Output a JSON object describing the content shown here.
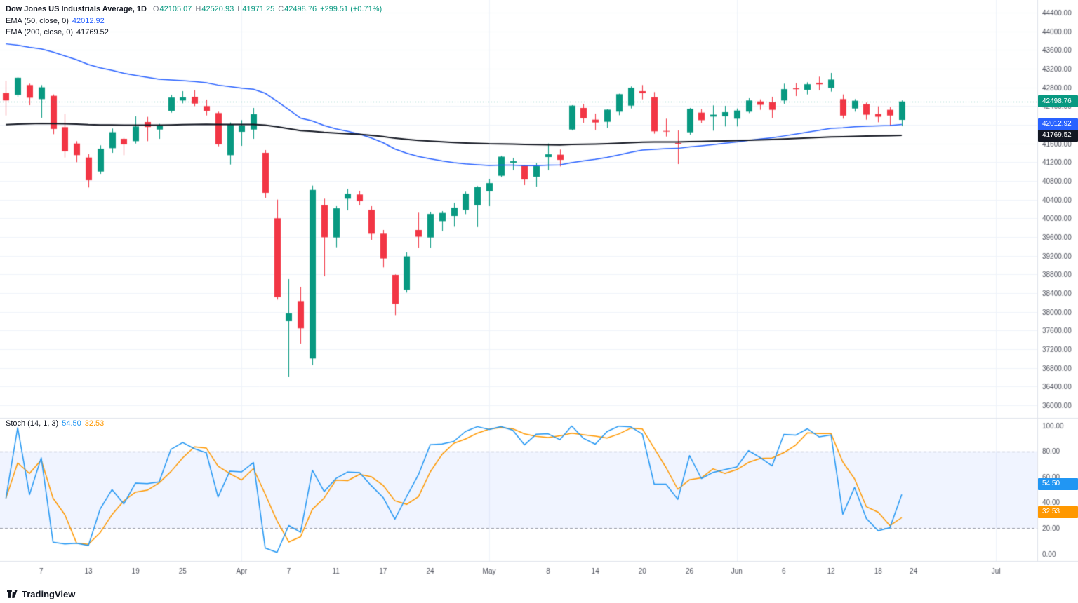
{
  "legend": {
    "symbol": "Dow Jones US Industrials Average, 1D",
    "open_label": "O",
    "open_value": "42105.07",
    "high_label": "H",
    "high_value": "42520.93",
    "low_label": "L",
    "low_value": "41971.25",
    "close_label": "C",
    "close_value": "42498.76",
    "change": "+299.51 (+0.71%)",
    "ema50_label": "EMA (50, close, 0)",
    "ema50_value": "42012.92",
    "ema200_label": "EMA (200, close, 0)",
    "ema200_value": "41769.52",
    "stoch_label": "Stoch (14, 1, 3)",
    "stoch_k_value": "54.50",
    "stoch_d_value": "32.53"
  },
  "badges": {
    "last": "42498.76",
    "ema50": "42012.92",
    "ema200": "41769.52",
    "stoch_k": "54.50",
    "stoch_d": "32.53"
  },
  "attribution": {
    "brand": "TradingView"
  },
  "colors": {
    "up": "#089981",
    "down": "#f23645",
    "ema50": "#2962ff",
    "ema200": "#131722",
    "stoch_k": "#2196f3",
    "stoch_d": "#ff9800",
    "grid": "#f0f3fa",
    "axis_text": "#50535e",
    "separator": "#e0e3eb",
    "band_fill": "rgba(41,98,255,0.07)",
    "band_edge": "rgba(110,114,128,0.7)",
    "last_price_line": "#089981"
  },
  "chart_data": {
    "type": "candlestick",
    "title": "Dow Jones US Industrials Average",
    "interval": "1D",
    "last_price": 42498.76,
    "total_slots": 88,
    "price_axis": {
      "min": 36000,
      "max": 44400,
      "step": 400,
      "ticks": [
        44400,
        44000,
        43600,
        43200,
        42800,
        42400,
        42000,
        41600,
        41200,
        40800,
        40400,
        40000,
        39600,
        39200,
        38800,
        38400,
        38000,
        37600,
        37200,
        36800,
        36400,
        36000
      ]
    },
    "time_ticks": [
      {
        "i": 3,
        "label": "7"
      },
      {
        "i": 7,
        "label": "13"
      },
      {
        "i": 11,
        "label": "19"
      },
      {
        "i": 15,
        "label": "25"
      },
      {
        "i": 20,
        "label": "Apr"
      },
      {
        "i": 24,
        "label": "7"
      },
      {
        "i": 28,
        "label": "11"
      },
      {
        "i": 32,
        "label": "17"
      },
      {
        "i": 36,
        "label": "24"
      },
      {
        "i": 41,
        "label": "May"
      },
      {
        "i": 46,
        "label": "8"
      },
      {
        "i": 50,
        "label": "14"
      },
      {
        "i": 54,
        "label": "20"
      },
      {
        "i": 58,
        "label": "26"
      },
      {
        "i": 62,
        "label": "Jun"
      },
      {
        "i": 66,
        "label": "6"
      },
      {
        "i": 70,
        "label": "12"
      },
      {
        "i": 74,
        "label": "18"
      },
      {
        "i": 77,
        "label": "24"
      },
      {
        "i": 84,
        "label": "Jul"
      }
    ],
    "month_grid": [
      20,
      41,
      62,
      84
    ],
    "candles": [
      [
        42680,
        42940,
        42200,
        42521
      ],
      [
        42640,
        43020,
        42600,
        43007
      ],
      [
        42850,
        42880,
        42420,
        42579
      ],
      [
        42550,
        42850,
        42150,
        42802
      ],
      [
        42620,
        42650,
        41800,
        41912
      ],
      [
        41950,
        42230,
        41300,
        41433
      ],
      [
        41600,
        41650,
        41200,
        41351
      ],
      [
        41300,
        41370,
        40660,
        40814
      ],
      [
        41000,
        41560,
        40950,
        41488
      ],
      [
        41500,
        41920,
        41400,
        41842
      ],
      [
        41700,
        41720,
        41350,
        41581
      ],
      [
        41650,
        42180,
        41600,
        41964
      ],
      [
        42060,
        42170,
        41650,
        41953
      ],
      [
        41900,
        42020,
        41700,
        41985
      ],
      [
        42300,
        42640,
        42260,
        42583
      ],
      [
        42520,
        42720,
        42460,
        42588
      ],
      [
        42600,
        42740,
        42400,
        42455
      ],
      [
        42400,
        42540,
        42200,
        42299
      ],
      [
        42250,
        42280,
        41540,
        41584
      ],
      [
        41350,
        42050,
        41150,
        42002
      ],
      [
        41850,
        42100,
        41550,
        41990
      ],
      [
        41900,
        42360,
        41700,
        42225
      ],
      [
        41400,
        41460,
        40440,
        40546
      ],
      [
        40000,
        40400,
        38260,
        38315
      ],
      [
        37800,
        38700,
        36610,
        37966
      ],
      [
        38230,
        38530,
        37320,
        37646
      ],
      [
        37000,
        40700,
        36860,
        40608
      ],
      [
        40280,
        40420,
        38760,
        39594
      ],
      [
        39590,
        40260,
        39380,
        40213
      ],
      [
        40420,
        40630,
        40170,
        40525
      ],
      [
        40510,
        40590,
        40280,
        40369
      ],
      [
        40180,
        40260,
        39540,
        39669
      ],
      [
        39670,
        39750,
        38950,
        39142
      ],
      [
        38790,
        38800,
        37930,
        38170
      ],
      [
        38470,
        39271,
        38410,
        39187
      ],
      [
        39750,
        40120,
        39370,
        39607
      ],
      [
        39590,
        40138,
        39370,
        40093
      ],
      [
        39940,
        40155,
        39727,
        40114
      ],
      [
        40050,
        40330,
        39818,
        40228
      ],
      [
        40180,
        40570,
        40090,
        40528
      ],
      [
        40280,
        40690,
        39812,
        40669
      ],
      [
        40580,
        40840,
        40260,
        40753
      ],
      [
        40910,
        41340,
        40880,
        41317
      ],
      [
        41190,
        41290,
        41030,
        41219
      ],
      [
        41130,
        41140,
        40710,
        40829
      ],
      [
        40890,
        41180,
        40680,
        41114
      ],
      [
        41310,
        41600,
        41030,
        41368
      ],
      [
        41360,
        41470,
        41110,
        41249
      ],
      [
        41900,
        42420,
        41880,
        42410
      ],
      [
        42360,
        42445,
        42045,
        42140
      ],
      [
        42110,
        42240,
        41890,
        42051
      ],
      [
        42065,
        42330,
        41935,
        42323
      ],
      [
        42280,
        42665,
        42205,
        42655
      ],
      [
        42410,
        42820,
        42350,
        42792
      ],
      [
        42720,
        42850,
        42545,
        42677
      ],
      [
        42590,
        42700,
        41810,
        41860
      ],
      [
        41870,
        42130,
        41750,
        41859
      ],
      [
        41610,
        41880,
        41160,
        41603
      ],
      [
        41840,
        42360,
        41790,
        42343
      ],
      [
        42260,
        42335,
        42042,
        42099
      ],
      [
        42175,
        42415,
        41875,
        42216
      ],
      [
        42180,
        42405,
        41965,
        42270
      ],
      [
        42130,
        42350,
        41965,
        42305
      ],
      [
        42280,
        42570,
        42250,
        42520
      ],
      [
        42500,
        42545,
        42320,
        42428
      ],
      [
        42480,
        42600,
        42145,
        42320
      ],
      [
        42520,
        42880,
        42450,
        42763
      ],
      [
        42780,
        42890,
        42615,
        42762
      ],
      [
        42750,
        42910,
        42650,
        42867
      ],
      [
        42900,
        43030,
        42740,
        42866
      ],
      [
        42790,
        43110,
        42710,
        42968
      ],
      [
        42550,
        42650,
        42130,
        42198
      ],
      [
        42350,
        42550,
        42280,
        42515
      ],
      [
        42440,
        42475,
        42110,
        42216
      ],
      [
        42230,
        42395,
        42055,
        42172
      ],
      [
        42320,
        42380,
        41980,
        42199
      ],
      [
        42105.07,
        42520.93,
        41971.25,
        42498.76
      ]
    ],
    "overlays": [
      {
        "label": "EMA (50, close, 0)",
        "period": 50,
        "seed": 43780,
        "value": 42012.92,
        "color": "#2962ff",
        "width": 1.5
      },
      {
        "label": "EMA (200, close, 0)",
        "period": 200,
        "seed": 42000,
        "value": 41769.52,
        "color": "#131722",
        "width": 2
      }
    ],
    "stoch": {
      "label": "Stoch (14, 1, 3)",
      "k_period": 14,
      "k_smoothing": 1,
      "d_period": 3,
      "k_last": 54.5,
      "d_last": 32.53,
      "upper": 80,
      "lower": 20,
      "axis_min": 0,
      "axis_max": 100,
      "ticks": [
        100,
        80,
        60,
        40,
        20,
        0
      ]
    },
    "badge_values": {
      "last": 42498.76,
      "ema50": 42012.92,
      "ema200": 41769.52,
      "stoch_k": 54.5,
      "stoch_d": 32.53
    }
  }
}
